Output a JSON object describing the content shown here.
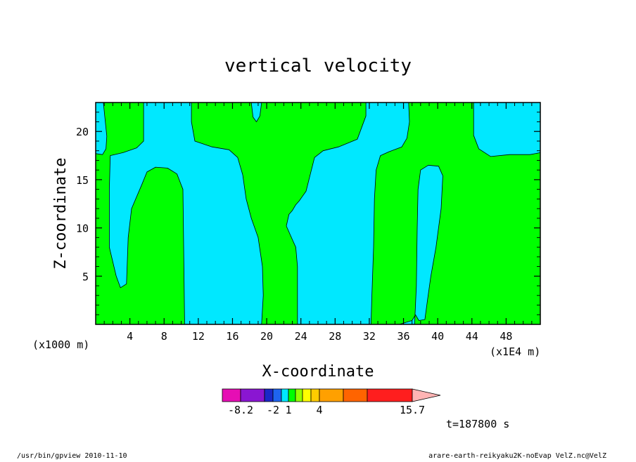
{
  "chart_data": {
    "type": "heatmap",
    "title": "vertical velocity",
    "xlabel": "X-coordinate",
    "ylabel": "Z-coordinate",
    "x_unit_left": "(x1000 m)",
    "x_unit_right": "(x1E4 m)",
    "xlim": [
      0,
      52
    ],
    "ylim": [
      0,
      23
    ],
    "x_ticks": [
      "4",
      "8",
      "12",
      "16",
      "20",
      "24",
      "28",
      "32",
      "36",
      "40",
      "44",
      "48"
    ],
    "y_ticks": [
      "5",
      "10",
      "15",
      "20"
    ],
    "fill_colors": {
      "negative": "#00e8ff",
      "positive": "#00ff00"
    },
    "regions": [
      {
        "fill": "negative",
        "points": [
          [
            0,
            23
          ],
          [
            0.9,
            23
          ],
          [
            1.3,
            19.5
          ],
          [
            1.2,
            18.2
          ],
          [
            0.8,
            17.6
          ],
          [
            0,
            17.7
          ]
        ]
      },
      {
        "fill": "negative",
        "points": [
          [
            1.9,
            23
          ],
          [
            5.6,
            23
          ],
          [
            5.6,
            19
          ],
          [
            4.8,
            18.3
          ],
          [
            3.2,
            17.8
          ],
          [
            1.7,
            17.5
          ],
          [
            1.6,
            14
          ],
          [
            1.6,
            8
          ],
          [
            2.4,
            5
          ],
          [
            2.9,
            3.8
          ],
          [
            3.6,
            4.2
          ],
          [
            3.8,
            9
          ],
          [
            4.2,
            12
          ],
          [
            5.4,
            14.5
          ],
          [
            6,
            15.8
          ],
          [
            7,
            16.3
          ],
          [
            8.4,
            16.2
          ],
          [
            9.5,
            15.6
          ],
          [
            10.2,
            14
          ],
          [
            10.4,
            0
          ],
          [
            19.4,
            0
          ],
          [
            19.6,
            3
          ],
          [
            19.5,
            6
          ],
          [
            19,
            9
          ],
          [
            18.2,
            11
          ],
          [
            17.6,
            13
          ],
          [
            17.2,
            15.5
          ],
          [
            16.6,
            17.3
          ],
          [
            15.6,
            18.1
          ],
          [
            13.6,
            18.4
          ],
          [
            11.6,
            19
          ],
          [
            11.2,
            21
          ],
          [
            11.2,
            23
          ]
        ]
      },
      {
        "fill": "negative",
        "points": [
          [
            18.2,
            23
          ],
          [
            19.4,
            23
          ],
          [
            19.2,
            21.6
          ],
          [
            18.8,
            21
          ],
          [
            18.4,
            21.5
          ]
        ]
      },
      {
        "fill": "negative",
        "points": [
          [
            27.8,
            23
          ],
          [
            31.6,
            23
          ],
          [
            31.6,
            21.6
          ],
          [
            30.6,
            19.2
          ],
          [
            28.4,
            18.4
          ],
          [
            26.6,
            18
          ],
          [
            25.6,
            17.3
          ],
          [
            25,
            15.2
          ],
          [
            24.6,
            13.8
          ],
          [
            24.2,
            13.3
          ],
          [
            23.8,
            12.8
          ],
          [
            23.4,
            12.4
          ],
          [
            23,
            11.8
          ],
          [
            22.6,
            11.4
          ],
          [
            22.3,
            10.2
          ],
          [
            23,
            8.8
          ],
          [
            23.4,
            8
          ],
          [
            23.6,
            6
          ],
          [
            23.6,
            0
          ],
          [
            32.2,
            0
          ],
          [
            32.3,
            3
          ],
          [
            32.5,
            8
          ],
          [
            32.6,
            13
          ],
          [
            32.8,
            16
          ],
          [
            33.3,
            17.5
          ],
          [
            34.3,
            17.9
          ],
          [
            35.8,
            18.4
          ],
          [
            36.4,
            19.3
          ],
          [
            36.7,
            21
          ],
          [
            36.6,
            23
          ]
        ]
      },
      {
        "fill": "negative",
        "points": [
          [
            44.2,
            23
          ],
          [
            52,
            23
          ],
          [
            52,
            17.8
          ],
          [
            50.8,
            17.6
          ],
          [
            48.4,
            17.6
          ],
          [
            46.2,
            17.4
          ],
          [
            44.8,
            18.2
          ],
          [
            44.2,
            19.6
          ]
        ]
      },
      {
        "fill": "negative",
        "points": [
          [
            35.5,
            0
          ],
          [
            37.3,
            0
          ],
          [
            37.5,
            4
          ],
          [
            37.6,
            10
          ],
          [
            37.7,
            14
          ],
          [
            38,
            16
          ],
          [
            38.9,
            16.5
          ],
          [
            40.1,
            16.4
          ],
          [
            40.6,
            15.4
          ],
          [
            40.4,
            12
          ],
          [
            39.8,
            8
          ],
          [
            39.2,
            5
          ],
          [
            38.8,
            2.5
          ],
          [
            38.5,
            0.5
          ],
          [
            37.8,
            0.4
          ],
          [
            37.4,
            1
          ],
          [
            37,
            0.4
          ]
        ]
      }
    ],
    "colorbar": {
      "colors": [
        "#e60eb4",
        "#8a16d2",
        "#1a28c8",
        "#1e64f0",
        "#00e8ff",
        "#00ff00",
        "#96ff00",
        "#ffff00",
        "#ffcc00",
        "#ffa000",
        "#ff6400",
        "#ff1e1e",
        "#ff8080",
        "#ff7d7d",
        "#ffb4b4"
      ],
      "labels": [
        "-8.2",
        "-2",
        "1",
        "4",
        "15.7"
      ]
    },
    "time_label": "t=187800 s"
  },
  "footer": {
    "left": "/usr/bin/gpview  2010-11-10",
    "right": "arare-earth-reikyaku2K-noEvap_VelZ.nc@VelZ"
  }
}
